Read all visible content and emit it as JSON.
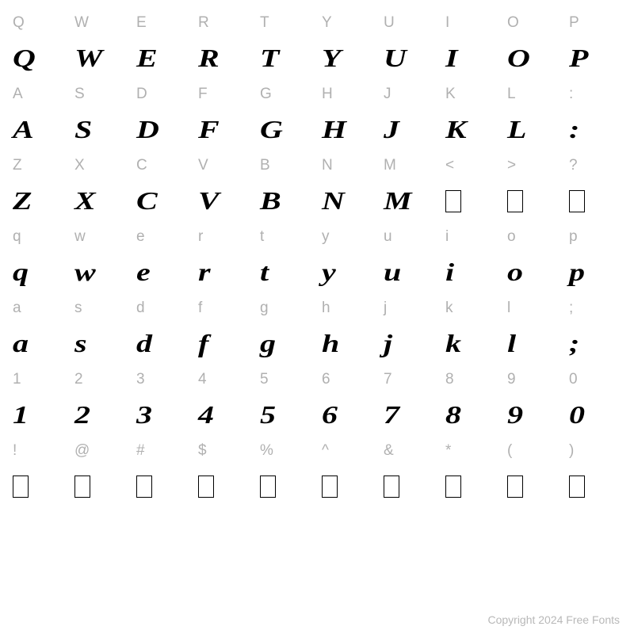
{
  "label_color": "#b0b0b0",
  "glyph_color": "#000000",
  "background_color": "#ffffff",
  "label_fontsize": 19,
  "glyph_fontsize": 32,
  "glyph_font_family": "Georgia, 'Times New Roman', serif",
  "glyph_font_style": "italic",
  "glyph_font_weight": 900,
  "glyph_scale_x": 1.25,
  "columns": 10,
  "footer": "Copyright 2024 Free Fonts",
  "rows": [
    {
      "type": "label",
      "cells": [
        "Q",
        "W",
        "E",
        "R",
        "T",
        "Y",
        "U",
        "I",
        "O",
        "P"
      ]
    },
    {
      "type": "glyph",
      "cells": [
        "Q",
        "W",
        "E",
        "R",
        "T",
        "Y",
        "U",
        "I",
        "O",
        "P"
      ],
      "missing": []
    },
    {
      "type": "label",
      "cells": [
        "A",
        "S",
        "D",
        "F",
        "G",
        "H",
        "J",
        "K",
        "L",
        ":"
      ]
    },
    {
      "type": "glyph",
      "cells": [
        "A",
        "S",
        "D",
        "F",
        "G",
        "H",
        "J",
        "K",
        "L",
        ":"
      ],
      "missing": []
    },
    {
      "type": "label",
      "cells": [
        "Z",
        "X",
        "C",
        "V",
        "B",
        "N",
        "M",
        "<",
        ">",
        "?"
      ]
    },
    {
      "type": "glyph",
      "cells": [
        "Z",
        "X",
        "C",
        "V",
        "B",
        "N",
        "M",
        "",
        "",
        ""
      ],
      "missing": [
        7,
        8,
        9
      ]
    },
    {
      "type": "label",
      "cells": [
        "q",
        "w",
        "e",
        "r",
        "t",
        "y",
        "u",
        "i",
        "o",
        "p"
      ]
    },
    {
      "type": "glyph",
      "cells": [
        "q",
        "w",
        "e",
        "r",
        "t",
        "y",
        "u",
        "i",
        "o",
        "p"
      ],
      "missing": []
    },
    {
      "type": "label",
      "cells": [
        "a",
        "s",
        "d",
        "f",
        "g",
        "h",
        "j",
        "k",
        "l",
        ";"
      ]
    },
    {
      "type": "glyph",
      "cells": [
        "a",
        "s",
        "d",
        "f",
        "g",
        "h",
        "j",
        "k",
        "l",
        ";"
      ],
      "missing": []
    },
    {
      "type": "label",
      "cells": [
        "1",
        "2",
        "3",
        "4",
        "5",
        "6",
        "7",
        "8",
        "9",
        "0"
      ]
    },
    {
      "type": "glyph",
      "cells": [
        "1",
        "2",
        "3",
        "4",
        "5",
        "6",
        "7",
        "8",
        "9",
        "0"
      ],
      "missing": []
    },
    {
      "type": "label",
      "cells": [
        "!",
        "@",
        "#",
        "$",
        "%",
        "^",
        "&",
        "*",
        "(",
        ")"
      ]
    },
    {
      "type": "glyph",
      "cells": [
        "",
        "",
        "",
        "",
        "",
        "",
        "",
        "",
        "",
        ""
      ],
      "missing": [
        0,
        1,
        2,
        3,
        4,
        5,
        6,
        7,
        8,
        9
      ]
    }
  ]
}
